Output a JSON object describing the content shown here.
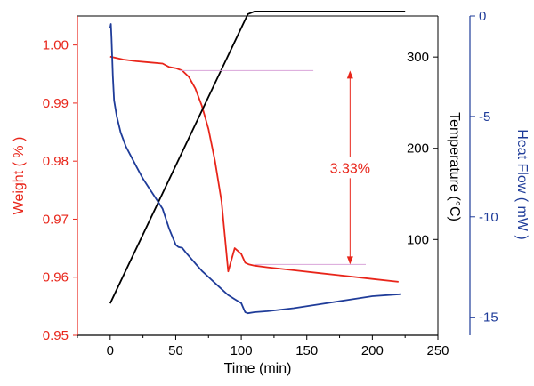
{
  "chart_data": {
    "type": "line",
    "title": "",
    "x_axis": {
      "label": "Time (min)",
      "range": [
        -25,
        250
      ],
      "ticks": [
        0,
        50,
        100,
        150,
        200,
        250
      ],
      "tick_labels": [
        "0",
        "50",
        "100",
        "150",
        "200",
        "250"
      ]
    },
    "axes": {
      "weight": {
        "label": "Weight ( % )",
        "position": "left",
        "color": "#e8251a",
        "range": [
          0.95,
          1.005
        ],
        "ticks": [
          0.95,
          0.96,
          0.97,
          0.98,
          0.99,
          1.0
        ],
        "tick_labels": [
          "0.95",
          "0.96",
          "0.97",
          "0.98",
          "0.99",
          "1.00"
        ]
      },
      "temperature": {
        "label": "Temperature (°C)",
        "position": "right-inner",
        "color": "#000000",
        "range": [
          -5,
          345
        ],
        "ticks": [
          100,
          200,
          300
        ],
        "tick_labels": [
          "100",
          "200",
          "300"
        ]
      },
      "heat_flow": {
        "label": "Heat Flow ( mW )",
        "position": "right-outer",
        "color": "#1f3c99",
        "range": [
          -15.9,
          0
        ],
        "ticks": [
          0,
          -5,
          -10,
          -15
        ],
        "tick_labels": [
          "0",
          "-5",
          "-10",
          "-15"
        ]
      }
    },
    "series": [
      {
        "axis": "weight",
        "color": "#e8251a",
        "x": [
          0,
          10,
          20,
          30,
          40,
          45,
          50,
          55,
          60,
          65,
          70,
          75,
          80,
          85,
          90,
          95,
          100,
          103,
          106,
          110,
          120,
          140,
          160,
          180,
          200,
          220
        ],
        "y": [
          0.998,
          0.9975,
          0.9972,
          0.997,
          0.9968,
          0.9962,
          0.996,
          0.9956,
          0.9945,
          0.9925,
          0.9895,
          0.9855,
          0.98,
          0.973,
          0.961,
          0.965,
          0.964,
          0.9625,
          0.9622,
          0.962,
          0.9617,
          0.9612,
          0.9607,
          0.9602,
          0.9597,
          0.9592
        ]
      },
      {
        "axis": "temperature",
        "color": "#000000",
        "x": [
          0,
          105,
          110,
          225
        ],
        "y": [
          30,
          347,
          350,
          350
        ]
      },
      {
        "axis": "heat_flow",
        "color": "#1f3c99",
        "x": [
          0,
          0.5,
          1,
          2,
          3,
          5,
          8,
          12,
          16,
          20,
          25,
          30,
          35,
          40,
          45,
          50,
          52,
          55,
          58,
          62,
          66,
          70,
          75,
          80,
          85,
          90,
          95,
          100,
          102,
          103,
          105,
          110,
          120,
          140,
          160,
          180,
          200,
          222
        ],
        "y": [
          -0.6,
          -0.4,
          -1.1,
          -3.0,
          -4.2,
          -5.0,
          -5.8,
          -6.5,
          -7.0,
          -7.5,
          -8.1,
          -8.6,
          -9.1,
          -9.6,
          -10.6,
          -11.4,
          -11.5,
          -11.55,
          -11.8,
          -12.1,
          -12.4,
          -12.7,
          -13.0,
          -13.3,
          -13.6,
          -13.9,
          -14.1,
          -14.3,
          -14.6,
          -14.75,
          -14.8,
          -14.75,
          -14.7,
          -14.55,
          -14.35,
          -14.15,
          -13.95,
          -13.85
        ]
      }
    ],
    "annotations": [
      {
        "text": "3.33%",
        "color": "#e8251a",
        "arrow_x": 183,
        "from": 0.9956,
        "to": 0.9622,
        "ref_line_top": {
          "x": [
            53,
            155
          ],
          "y": 0.9956,
          "color": "#d9a5d9"
        },
        "ref_line_bottom": {
          "x": [
            110,
            195
          ],
          "y": 0.9622,
          "color": "#d9a5d9"
        }
      }
    ]
  }
}
